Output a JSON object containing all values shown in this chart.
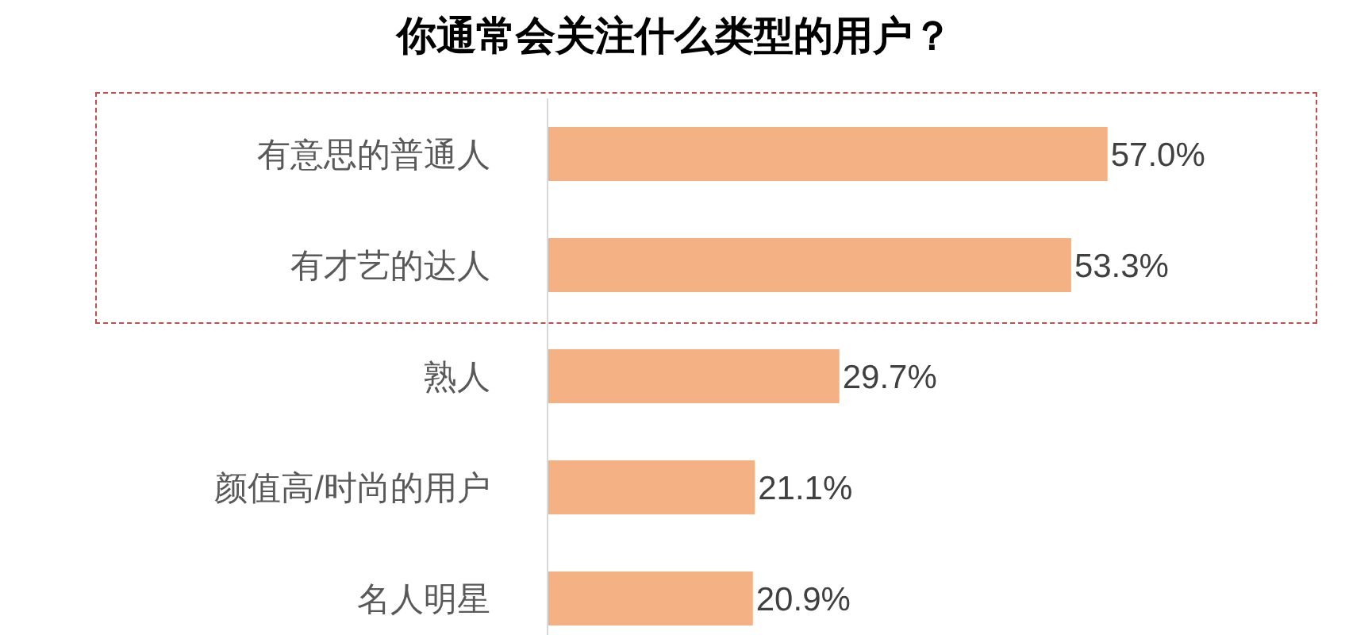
{
  "chart_data": {
    "type": "bar",
    "orientation": "horizontal",
    "title": "你通常会关注什么类型的用户？",
    "categories": [
      "有意思的普通人",
      "有才艺的达人",
      "熟人",
      "颜值高/时尚的用户",
      "名人明星"
    ],
    "values": [
      57.0,
      53.3,
      29.7,
      21.1,
      20.9
    ],
    "value_labels": [
      "57.0%",
      "53.3%",
      "29.7%",
      "21.1%",
      "20.9%"
    ],
    "color": "#f4b183"
  }
}
